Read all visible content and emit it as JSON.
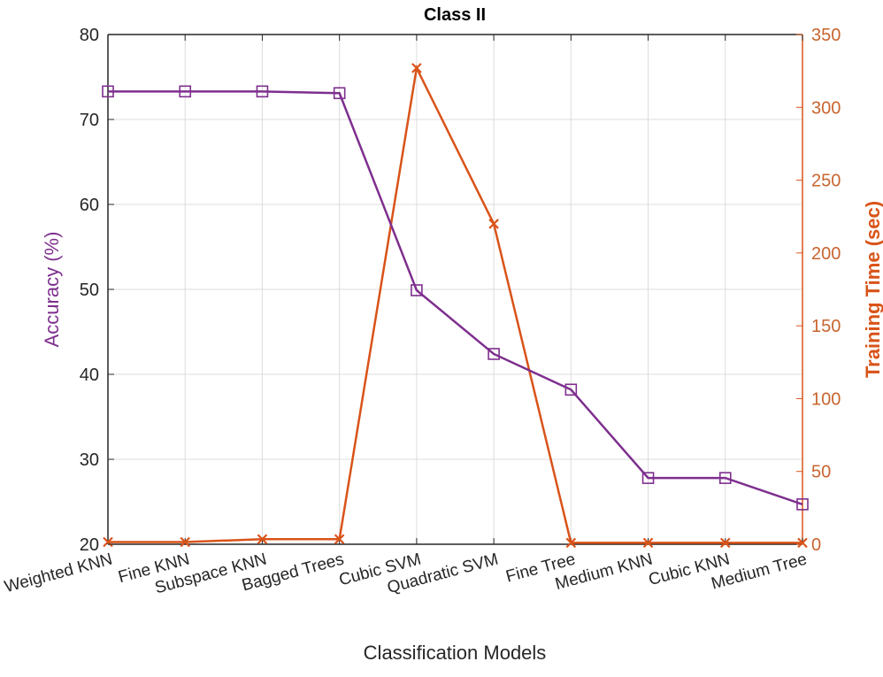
{
  "chart_data": {
    "type": "line",
    "title": "Class II",
    "xlabel": "Classification Models",
    "categories": [
      "Weighted KNN",
      "Fine KNN",
      "Subspace KNN",
      "Bagged Trees",
      "Cubic SVM",
      "Quadratic SVM",
      "Fine Tree",
      "Medium KNN",
      "Cubic KNN",
      "Medium Tree"
    ],
    "y_left": {
      "label": "Accuracy (%)",
      "ylim": [
        20,
        80
      ],
      "ticks": [
        20,
        30,
        40,
        50,
        60,
        70,
        80
      ],
      "color": "#7e2f8e"
    },
    "y_right": {
      "label": "Training Time (sec)",
      "ylim": [
        0,
        350
      ],
      "ticks": [
        0,
        50,
        100,
        150,
        200,
        250,
        300,
        350
      ],
      "color": "#d95319"
    },
    "series": [
      {
        "name": "Accuracy (%)",
        "axis": "left",
        "marker": "square",
        "color": "#7e2f8e",
        "values": [
          73.3,
          73.3,
          73.3,
          73.1,
          49.9,
          42.4,
          38.2,
          27.8,
          27.8,
          24.7
        ]
      },
      {
        "name": "Training Time (sec)",
        "axis": "right",
        "marker": "x",
        "color": "#d95319",
        "values": [
          1.5,
          1.5,
          3.5,
          3.5,
          327,
          220,
          1,
          1,
          1,
          1
        ]
      }
    ],
    "grid": true,
    "legend": "none"
  }
}
